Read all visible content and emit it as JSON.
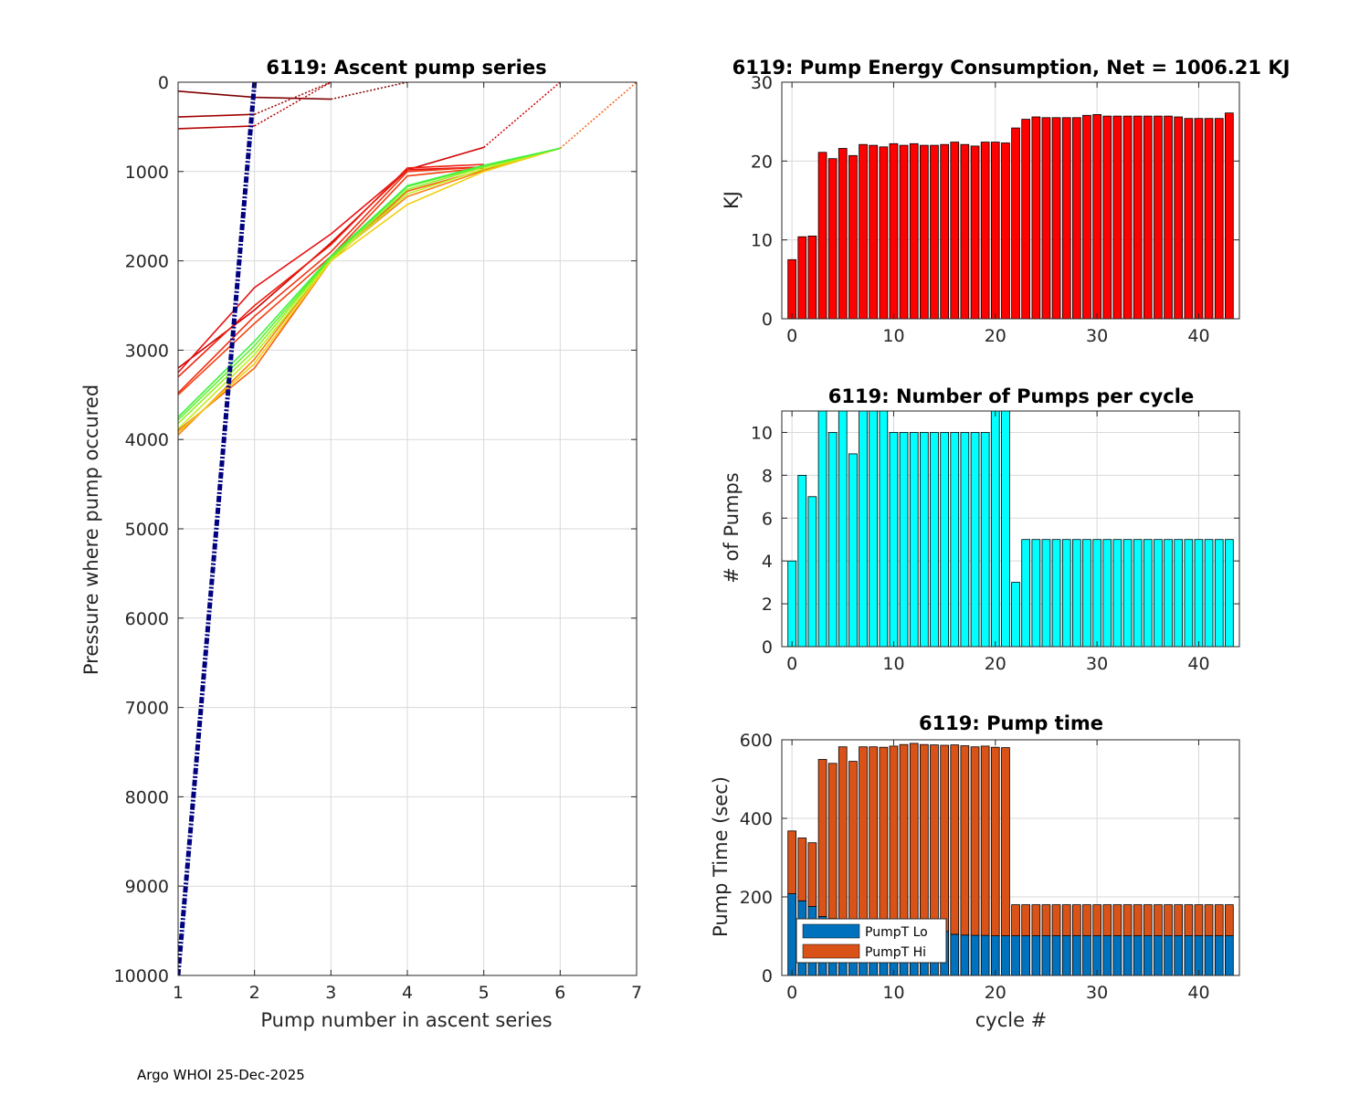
{
  "footer": "Argo WHOI 25-Dec-2025",
  "chart_data": [
    {
      "id": "ascent",
      "type": "line",
      "title": "6119: Ascent pump series",
      "xlabel": "Pump number in ascent series",
      "ylabel": "Pressure where pump occured",
      "xlim": [
        1,
        7
      ],
      "ylim": [
        0,
        10000
      ],
      "y_reversed": true,
      "xticks": [
        "1",
        "2",
        "3",
        "4",
        "5",
        "6",
        "7"
      ],
      "yticks": [
        "0",
        "1000",
        "2000",
        "3000",
        "4000",
        "5000",
        "6000",
        "7000",
        "8000",
        "9000",
        "10000"
      ],
      "trend_line": {
        "x": [
          1,
          2
        ],
        "y": [
          10000,
          0
        ],
        "color": "#00007f",
        "style": "dash-dot"
      },
      "series": [
        {
          "color": "#7f0000",
          "points": [
            [
              1,
              100
            ],
            [
              2,
              170
            ],
            [
              3,
              190
            ]
          ],
          "surface": [
            [
              3,
              190
            ],
            [
              4,
              0
            ]
          ]
        },
        {
          "color": "#a00000",
          "points": [
            [
              1,
              390
            ],
            [
              2,
              360
            ]
          ],
          "surface": [
            [
              2,
              360
            ],
            [
              3,
              0
            ]
          ]
        },
        {
          "color": "#b40000",
          "points": [
            [
              1,
              520
            ],
            [
              2,
              490
            ]
          ],
          "surface": [
            [
              2,
              490
            ],
            [
              3,
              0
            ]
          ]
        },
        {
          "color": "#d00000",
          "points": [
            [
              1,
              3200
            ],
            [
              2,
              2550
            ],
            [
              3,
              1800
            ],
            [
              4,
              980
            ],
            [
              5,
              730
            ]
          ],
          "surface": [
            [
              5,
              730
            ],
            [
              6,
              0
            ]
          ]
        },
        {
          "color": "#e81010",
          "points": [
            [
              1,
              3250
            ],
            [
              2,
              2300
            ],
            [
              3,
              1700
            ],
            [
              4,
              980
            ],
            [
              5,
              950
            ]
          ]
        },
        {
          "color": "#ee2010",
          "points": [
            [
              1,
              3300
            ],
            [
              2,
              2500
            ],
            [
              3,
              1820
            ],
            [
              4,
              960
            ],
            [
              5,
              920
            ]
          ]
        },
        {
          "color": "#f03010",
          "points": [
            [
              1,
              3480
            ],
            [
              2,
              2620
            ],
            [
              3,
              1900
            ],
            [
              4,
              1000
            ],
            [
              5,
              950
            ]
          ]
        },
        {
          "color": "#f24010",
          "points": [
            [
              1,
              3500
            ],
            [
              2,
              2700
            ],
            [
              3,
              1950
            ],
            [
              4,
              1050
            ],
            [
              5,
              960
            ]
          ]
        },
        {
          "color": "#f56010",
          "points": [
            [
              1,
              3900
            ],
            [
              2,
              3200
            ],
            [
              3,
              2000
            ],
            [
              4,
              1220
            ],
            [
              5,
              980
            ],
            [
              6,
              740
            ]
          ],
          "surface": [
            [
              6,
              740
            ],
            [
              7,
              0
            ]
          ]
        },
        {
          "color": "#f88010",
          "points": [
            [
              1,
              3950
            ],
            [
              2,
              3100
            ],
            [
              3,
              1980
            ],
            [
              4,
              1280
            ],
            [
              5,
              990
            ],
            [
              6,
              740
            ]
          ]
        },
        {
          "color": "#f0d010",
          "points": [
            [
              1,
              3920
            ],
            [
              2,
              3150
            ],
            [
              3,
              2000
            ],
            [
              4,
              1370
            ],
            [
              5,
              1000
            ],
            [
              6,
              740
            ]
          ]
        },
        {
          "color": "#c0f020",
          "points": [
            [
              1,
              3880
            ],
            [
              2,
              3050
            ],
            [
              3,
              1990
            ],
            [
              4,
              1250
            ],
            [
              5,
              970
            ],
            [
              6,
              740
            ]
          ]
        },
        {
          "color": "#90f020",
          "points": [
            [
              1,
              3820
            ],
            [
              2,
              3000
            ],
            [
              3,
              1970
            ],
            [
              4,
              1200
            ],
            [
              5,
              950
            ],
            [
              6,
              740
            ]
          ]
        },
        {
          "color": "#60f030",
          "points": [
            [
              1,
              3780
            ],
            [
              2,
              2950
            ],
            [
              3,
              1960
            ],
            [
              4,
              1170
            ],
            [
              5,
              940
            ],
            [
              6,
              740
            ]
          ]
        },
        {
          "color": "#40f040",
          "points": [
            [
              1,
              3750
            ],
            [
              2,
              2900
            ],
            [
              3,
              1950
            ],
            [
              4,
              1160
            ],
            [
              5,
              930
            ],
            [
              6,
              740
            ]
          ]
        }
      ]
    },
    {
      "id": "energy",
      "type": "bar",
      "title": "6119: Pump Energy Consumption,  Net = 1006.21 KJ",
      "xlabel": "",
      "ylabel": "KJ",
      "xlim": [
        -1,
        44
      ],
      "ylim": [
        0,
        30
      ],
      "xticks": [
        "0",
        "10",
        "20",
        "30",
        "40"
      ],
      "yticks": [
        "0",
        "10",
        "20",
        "30"
      ],
      "color": "#ff0000",
      "x": [
        0,
        1,
        2,
        3,
        4,
        5,
        6,
        7,
        8,
        9,
        10,
        11,
        12,
        13,
        14,
        15,
        16,
        17,
        18,
        19,
        20,
        21,
        22,
        23,
        24,
        25,
        26,
        27,
        28,
        29,
        30,
        31,
        32,
        33,
        34,
        35,
        36,
        37,
        38,
        39,
        40,
        41,
        42,
        43
      ],
      "values": [
        7.5,
        10.4,
        10.5,
        21.1,
        20.3,
        21.6,
        20.7,
        22.1,
        22.0,
        21.8,
        22.2,
        22.0,
        22.2,
        22.0,
        22.0,
        22.1,
        22.4,
        22.1,
        21.9,
        22.4,
        22.4,
        22.3,
        24.2,
        25.3,
        25.6,
        25.5,
        25.5,
        25.5,
        25.5,
        25.8,
        25.9,
        25.7,
        25.7,
        25.7,
        25.7,
        25.7,
        25.7,
        25.7,
        25.6,
        25.4,
        25.4,
        25.4,
        25.4,
        26.1
      ]
    },
    {
      "id": "pumps",
      "type": "bar",
      "title": "6119: Number of Pumps per cycle",
      "xlabel": "",
      "ylabel": "# of Pumps",
      "xlim": [
        -1,
        44
      ],
      "ylim": [
        0,
        11
      ],
      "xticks": [
        "0",
        "10",
        "20",
        "30",
        "40"
      ],
      "yticks": [
        "0",
        "2",
        "4",
        "6",
        "8",
        "10"
      ],
      "color": "#00ffff",
      "x": [
        0,
        1,
        2,
        3,
        4,
        5,
        6,
        7,
        8,
        9,
        10,
        11,
        12,
        13,
        14,
        15,
        16,
        17,
        18,
        19,
        20,
        21,
        22,
        23,
        24,
        25,
        26,
        27,
        28,
        29,
        30,
        31,
        32,
        33,
        34,
        35,
        36,
        37,
        38,
        39,
        40,
        41,
        42,
        43
      ],
      "values": [
        4,
        8,
        7,
        11,
        10,
        11,
        9,
        11,
        11,
        11,
        10,
        10,
        10,
        10,
        10,
        10,
        10,
        10,
        10,
        10,
        11,
        11,
        3,
        5,
        5,
        5,
        5,
        5,
        5,
        5,
        5,
        5,
        5,
        5,
        5,
        5,
        5,
        5,
        5,
        5,
        5,
        5,
        5,
        5
      ]
    },
    {
      "id": "pumptime",
      "type": "bar",
      "stacked": true,
      "title": "6119: Pump time",
      "xlabel": "cycle #",
      "ylabel": "Pump Time (sec)",
      "xlim": [
        -1,
        44
      ],
      "ylim": [
        0,
        600
      ],
      "xticks": [
        "0",
        "10",
        "20",
        "30",
        "40"
      ],
      "yticks": [
        "0",
        "200",
        "400",
        "600"
      ],
      "x": [
        0,
        1,
        2,
        3,
        4,
        5,
        6,
        7,
        8,
        9,
        10,
        11,
        12,
        13,
        14,
        15,
        16,
        17,
        18,
        19,
        20,
        21,
        22,
        23,
        24,
        25,
        26,
        27,
        28,
        29,
        30,
        31,
        32,
        33,
        34,
        35,
        36,
        37,
        38,
        39,
        40,
        41,
        42,
        43
      ],
      "legend": [
        "PumpT Lo",
        "PumpT Hi"
      ],
      "legend_location": "bottom-left",
      "series": [
        {
          "name": "PumpT Lo",
          "color": "#0072bd",
          "values": [
            208,
            190,
            176,
            150,
            145,
            140,
            135,
            130,
            128,
            126,
            125,
            123,
            121,
            118,
            115,
            112,
            105,
            103,
            102,
            102,
            101,
            101,
            101,
            101,
            101,
            101,
            101,
            101,
            101,
            101,
            101,
            101,
            101,
            101,
            101,
            101,
            101,
            101,
            101,
            101,
            101,
            101,
            101,
            101
          ]
        },
        {
          "name": "PumpT Hi",
          "color": "#d95319",
          "values": [
            160,
            160,
            162,
            400,
            395,
            442,
            410,
            452,
            454,
            455,
            459,
            465,
            470,
            470,
            472,
            474,
            482,
            482,
            480,
            482,
            480,
            479,
            79,
            79,
            79,
            79,
            79,
            79,
            79,
            79,
            79,
            79,
            79,
            79,
            79,
            79,
            79,
            79,
            79,
            79,
            79,
            79,
            79,
            79
          ]
        }
      ]
    }
  ]
}
